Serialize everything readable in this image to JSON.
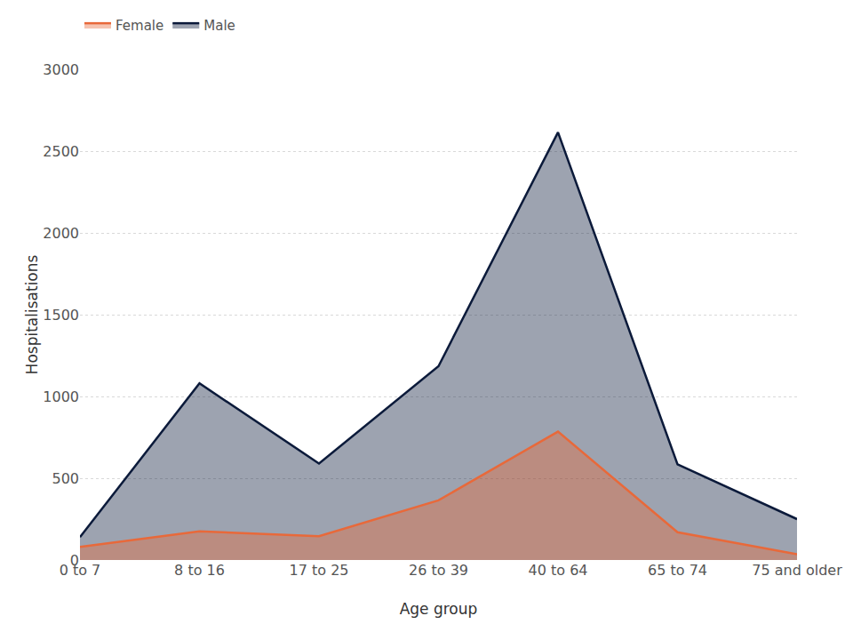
{
  "chart_data": {
    "type": "area",
    "x_label": "Age group",
    "y_label": "Hospitalisations",
    "categories": [
      "0 to 7",
      "8 to 16",
      "17 to 25",
      "26 to 39",
      "40 to 64",
      "65 to 74",
      "75 and older"
    ],
    "series": [
      {
        "name": "Female",
        "color": "#e8693a",
        "values": [
          80,
          175,
          145,
          365,
          785,
          170,
          35
        ]
      },
      {
        "name": "Male",
        "color": "#0b1a3a",
        "values": [
          140,
          1080,
          590,
          1185,
          2615,
          585,
          250
        ]
      }
    ],
    "ylim": [
      0,
      3000
    ],
    "yticks": [
      0,
      500,
      1000,
      1500,
      2000,
      2500,
      3000
    ],
    "grid": true,
    "legend": "top-left",
    "stacked": false
  }
}
